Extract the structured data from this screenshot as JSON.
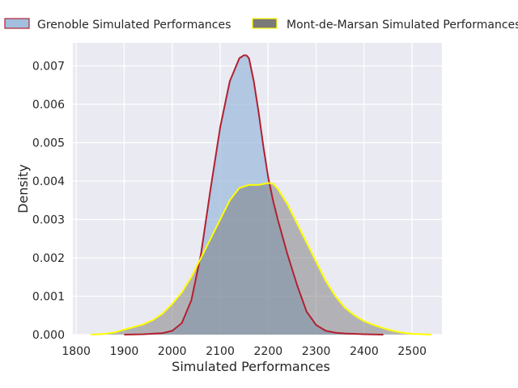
{
  "chart_data": {
    "type": "area",
    "title": "",
    "xlabel": "Simulated Performances",
    "ylabel": "Density",
    "xlim": [
      1793,
      2562
    ],
    "ylim": [
      0,
      0.0076
    ],
    "x_ticks": [
      1800,
      1900,
      2000,
      2100,
      2200,
      2300,
      2400,
      2500
    ],
    "y_ticks": [
      0.0,
      0.001,
      0.002,
      0.003,
      0.004,
      0.005,
      0.006,
      0.007
    ],
    "x_tick_labels": [
      "1800",
      "1900",
      "2000",
      "2100",
      "2200",
      "2300",
      "2400",
      "2500"
    ],
    "y_tick_labels": [
      "0.000",
      "0.001",
      "0.002",
      "0.003",
      "0.004",
      "0.005",
      "0.006",
      "0.007"
    ],
    "grid": true,
    "legend_position": "top",
    "series": [
      {
        "name": "Grenoble Simulated Performances",
        "fill_color": "#92b4d8",
        "line_color": "#b22030",
        "x": [
          1900,
          1940,
          1980,
          2000,
          2020,
          2040,
          2060,
          2080,
          2100,
          2120,
          2140,
          2150,
          2155,
          2160,
          2170,
          2180,
          2190,
          2200,
          2210,
          2220,
          2240,
          2260,
          2280,
          2300,
          2320,
          2340,
          2360,
          2380,
          2400,
          2440
        ],
        "values": [
          0.0,
          1e-05,
          4e-05,
          0.0001,
          0.0003,
          0.0009,
          0.0021,
          0.0038,
          0.0054,
          0.0066,
          0.0072,
          0.00728,
          0.00727,
          0.0072,
          0.0066,
          0.0058,
          0.0049,
          0.0041,
          0.0035,
          0.003,
          0.0021,
          0.0013,
          0.0006,
          0.00025,
          0.0001,
          5e-05,
          3e-05,
          2e-05,
          1e-05,
          0.0
        ]
      },
      {
        "name": "Mont-de-Marsan Simulated Performances",
        "fill_color": "#7a7a7a",
        "line_color": "#ffff00",
        "x": [
          1830,
          1860,
          1880,
          1900,
          1920,
          1940,
          1960,
          1980,
          2000,
          2020,
          2040,
          2060,
          2080,
          2100,
          2120,
          2140,
          2160,
          2180,
          2200,
          2210,
          2220,
          2240,
          2260,
          2280,
          2300,
          2320,
          2340,
          2360,
          2380,
          2400,
          2420,
          2440,
          2460,
          2480,
          2500,
          2520,
          2540
        ],
        "values": [
          0.0,
          2e-05,
          6e-05,
          0.00013,
          0.0002,
          0.00027,
          0.00038,
          0.00055,
          0.0008,
          0.0011,
          0.0015,
          0.002,
          0.0025,
          0.003,
          0.0035,
          0.00382,
          0.0039,
          0.0039,
          0.00395,
          0.00393,
          0.0038,
          0.0034,
          0.0029,
          0.0024,
          0.0019,
          0.0014,
          0.001,
          0.0007,
          0.0005,
          0.00035,
          0.00025,
          0.00017,
          0.0001,
          5e-05,
          2e-05,
          1e-05,
          0.0
        ]
      }
    ]
  }
}
